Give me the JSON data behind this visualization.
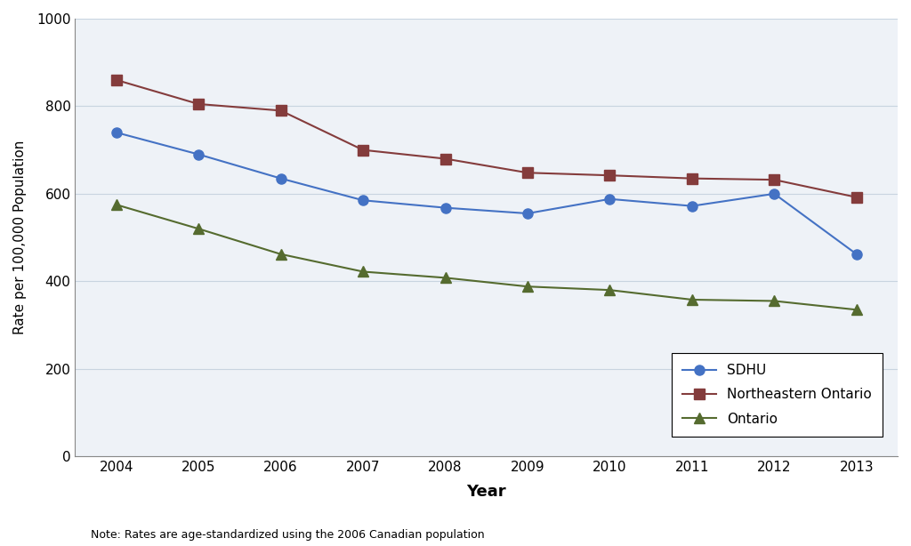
{
  "years": [
    2004,
    2005,
    2006,
    2007,
    2008,
    2009,
    2010,
    2011,
    2012,
    2013
  ],
  "sdhu": [
    740,
    690,
    635,
    585,
    568,
    555,
    588,
    572,
    600,
    462
  ],
  "northeastern_ontario": [
    860,
    805,
    790,
    700,
    680,
    648,
    642,
    635,
    632,
    592
  ],
  "ontario": [
    575,
    520,
    462,
    422,
    408,
    388,
    380,
    358,
    355,
    335
  ],
  "sdhu_color": "#4472c4",
  "northeastern_color": "#843c3c",
  "ontario_color": "#556b2f",
  "ylabel": "Rate per 100,000 Population",
  "xlabel": "Year",
  "note": "Note: Rates are age-standardized using the 2006 Canadian population",
  "ylim": [
    0,
    1000
  ],
  "yticks": [
    0,
    200,
    400,
    600,
    800,
    1000
  ],
  "legend_labels": [
    "SDHU",
    "Northeastern Ontario",
    "Ontario"
  ],
  "marker_size": 8,
  "line_width": 1.5,
  "plot_bg_color": "#eef2f7",
  "grid_color": "#c8d4e0"
}
